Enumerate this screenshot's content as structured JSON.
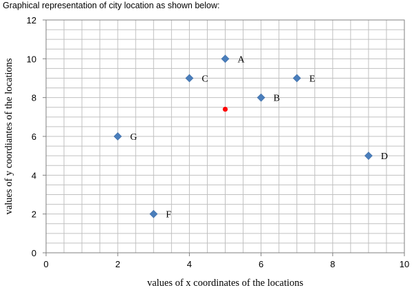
{
  "caption": "Graphical representation of city location as shown below:",
  "chart_data": {
    "type": "scatter",
    "title": "",
    "xlabel": "values of x coordinates of the locations",
    "ylabel": "values of y coordiantes of the locations",
    "xlim": [
      0,
      10
    ],
    "ylim": [
      0,
      12
    ],
    "x_ticks": [
      0,
      2,
      4,
      6,
      8,
      10
    ],
    "y_ticks": [
      0,
      2,
      4,
      6,
      8,
      10,
      12
    ],
    "grid": true,
    "minor_grid": true,
    "legend": "none",
    "points": [
      {
        "label": "A",
        "x": 5,
        "y": 10
      },
      {
        "label": "B",
        "x": 6,
        "y": 8
      },
      {
        "label": "C",
        "x": 4,
        "y": 9
      },
      {
        "label": "D",
        "x": 9,
        "y": 5
      },
      {
        "label": "E",
        "x": 7,
        "y": 9
      },
      {
        "label": "F",
        "x": 3,
        "y": 2
      },
      {
        "label": "G",
        "x": 2,
        "y": 6
      }
    ],
    "highlight_point": {
      "x": 5,
      "y": 7.4
    },
    "colors": {
      "points": "#4a7ebb",
      "highlight": "#ff0000",
      "grid": "#c0c0c0",
      "axis": "#7f7f7f"
    }
  }
}
